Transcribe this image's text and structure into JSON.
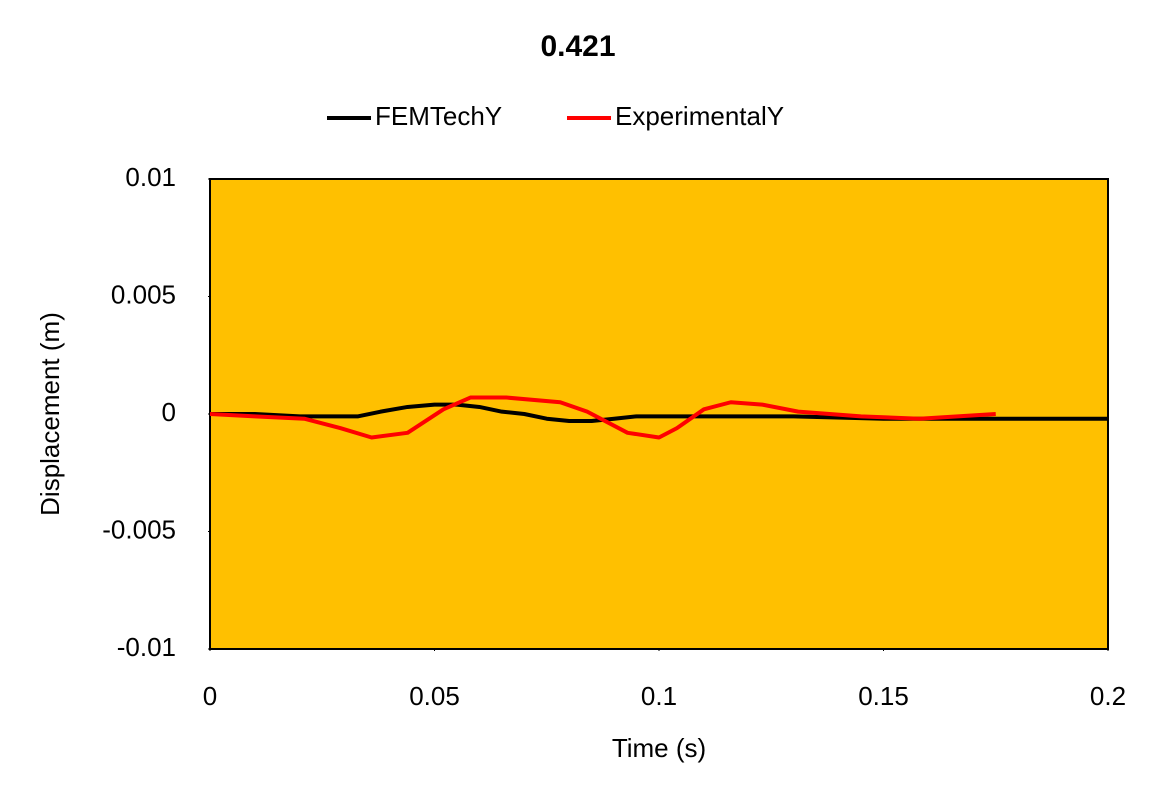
{
  "chart_data": {
    "type": "line",
    "title": "0.421",
    "x_label": "Time (s)",
    "y_label": "Displacement (m)",
    "xlim": [
      0,
      0.2
    ],
    "xticks": [
      0,
      0.05,
      0.1,
      0.15,
      0.2
    ],
    "ylim": [
      -0.01,
      0.01
    ],
    "yticks": [
      -0.01,
      -0.005,
      0,
      0.005,
      0.01
    ],
    "plot_background": "#ffc000",
    "legend": "top",
    "series": [
      {
        "name": "FEMTechY",
        "color": "#000000",
        "x": [
          0,
          0.01,
          0.02,
          0.033,
          0.038,
          0.044,
          0.05,
          0.055,
          0.06,
          0.065,
          0.07,
          0.075,
          0.08,
          0.085,
          0.09,
          0.095,
          0.1,
          0.11,
          0.13,
          0.15,
          0.2
        ],
        "values": [
          0,
          0,
          -0.0001,
          -0.0001,
          0.0001,
          0.0003,
          0.0004,
          0.0004,
          0.0003,
          0.0001,
          0,
          -0.0002,
          -0.0003,
          -0.0003,
          -0.0002,
          -0.0001,
          -0.0001,
          -0.0001,
          -0.0001,
          -0.0002,
          -0.0002
        ]
      },
      {
        "name": "ExperimentalY",
        "color": "#ff0000",
        "x": [
          0,
          0.01,
          0.021,
          0.029,
          0.036,
          0.044,
          0.052,
          0.058,
          0.066,
          0.078,
          0.084,
          0.093,
          0.1,
          0.104,
          0.11,
          0.116,
          0.123,
          0.131,
          0.145,
          0.158,
          0.175
        ],
        "values": [
          0,
          -0.0001,
          -0.0002,
          -0.0006,
          -0.001,
          -0.0008,
          0.0002,
          0.0007,
          0.0007,
          0.0005,
          0.0001,
          -0.0008,
          -0.001,
          -0.0006,
          0.0002,
          0.0005,
          0.0004,
          0.0001,
          -0.0001,
          -0.0002,
          0
        ]
      }
    ]
  }
}
